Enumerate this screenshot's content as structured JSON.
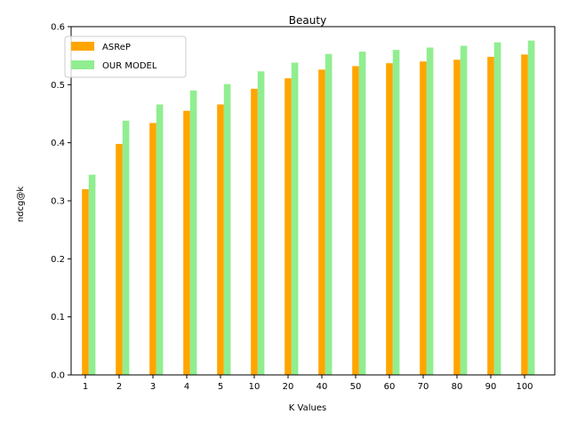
{
  "chart_data": {
    "type": "bar",
    "title": "Beauty",
    "xlabel": "K Values",
    "ylabel": "ndcg@k",
    "categories": [
      "1",
      "2",
      "3",
      "4",
      "5",
      "10",
      "20",
      "40",
      "50",
      "60",
      "70",
      "80",
      "90",
      "100"
    ],
    "series": [
      {
        "name": "ASReP",
        "color": "#ffa500",
        "values": [
          0.32,
          0.398,
          0.434,
          0.455,
          0.466,
          0.493,
          0.511,
          0.526,
          0.532,
          0.537,
          0.54,
          0.543,
          0.548,
          0.552
        ]
      },
      {
        "name": "OUR MODEL",
        "color": "#90ee90",
        "values": [
          0.345,
          0.438,
          0.466,
          0.49,
          0.501,
          0.523,
          0.538,
          0.553,
          0.557,
          0.56,
          0.564,
          0.567,
          0.573,
          0.576
        ]
      }
    ],
    "ylim": [
      0,
      0.6
    ],
    "yticks": [
      "0.0",
      "0.1",
      "0.2",
      "0.3",
      "0.4",
      "0.5",
      "0.6"
    ],
    "grid": false,
    "legend_position": "top-left"
  }
}
